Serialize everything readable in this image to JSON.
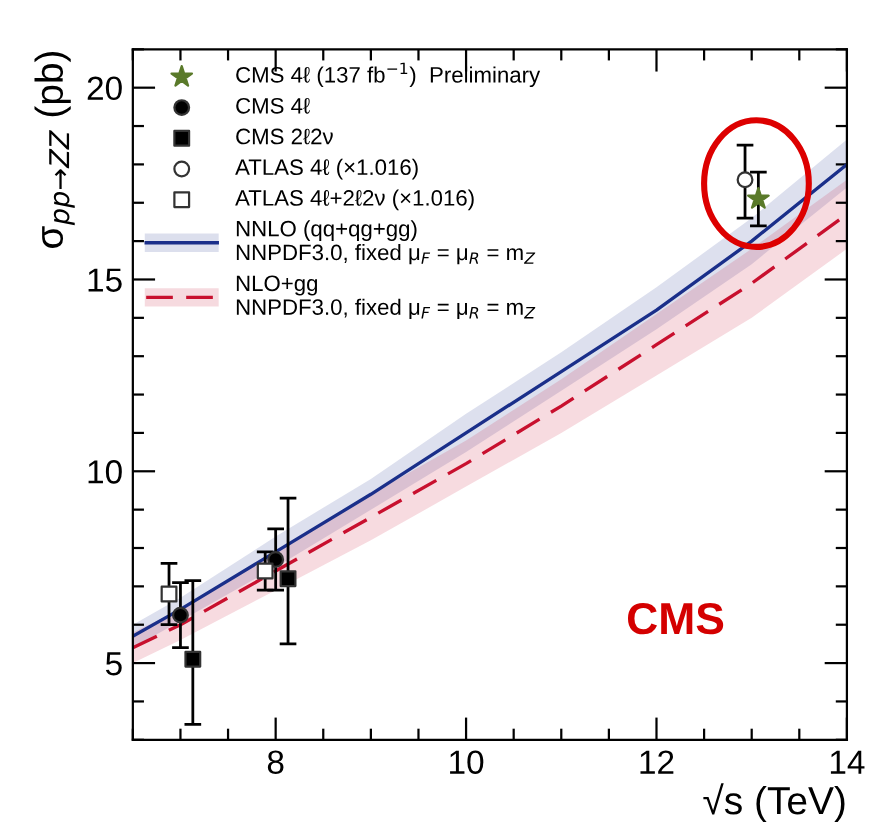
{
  "chart_data": {
    "type": "scatter",
    "xlabel": "√s (TeV)",
    "ylabel": "σ$_{pp→ZZ}$ (pb)",
    "xlim": [
      6.5,
      14
    ],
    "ylim": [
      3,
      21
    ],
    "xticks": [
      {
        "value": 6.5,
        "label": null
      },
      {
        "value": 7,
        "label": null
      },
      {
        "value": 7.5,
        "label": null
      },
      8,
      {
        "value": 8.5,
        "label": null
      },
      {
        "value": 9,
        "label": null
      },
      {
        "value": 9.5,
        "label": null
      },
      10,
      {
        "value": 10.5,
        "label": null
      },
      {
        "value": 11,
        "label": null
      },
      {
        "value": 11.5,
        "label": null
      },
      12,
      {
        "value": 12.5,
        "label": null
      },
      {
        "value": 13,
        "label": null
      },
      {
        "value": 13.5,
        "label": null
      },
      14
    ],
    "yticks": [
      {
        "value": 3,
        "label": null
      },
      {
        "value": 4,
        "label": null
      },
      5,
      {
        "value": 6,
        "label": null
      },
      {
        "value": 7,
        "label": null
      },
      {
        "value": 8,
        "label": null
      },
      {
        "value": 9,
        "label": null
      },
      10,
      {
        "value": 11,
        "label": null
      },
      {
        "value": 12,
        "label": null
      },
      {
        "value": 13,
        "label": null
      },
      {
        "value": 14,
        "label": null
      },
      15,
      {
        "value": 16,
        "label": null
      },
      {
        "value": 17,
        "label": null
      },
      {
        "value": 18,
        "label": null
      },
      {
        "value": 19,
        "label": null
      },
      20,
      {
        "value": 21,
        "label": null
      }
    ],
    "legend": "top left",
    "series": [
      {
        "name": "CMS 4ℓ (137 fb$^{−1}$)  Preliminary",
        "marker": "star",
        "color": "#5a7a2a",
        "x": [
          13.07
        ],
        "values": [
          17.1
        ],
        "errors": [
          [
            16.4,
            17.8
          ]
        ]
      },
      {
        "name": "CMS 4ℓ",
        "marker": "circle",
        "color": "#000000",
        "x": [
          7.0,
          8.0
        ],
        "values": [
          6.25,
          7.7
        ],
        "errors": [
          [
            5.4,
            7.1
          ],
          [
            6.9,
            8.5
          ]
        ]
      },
      {
        "name": "CMS 2ℓ2ν",
        "marker": "square",
        "color": "#000000",
        "x": [
          7.13,
          8.13
        ],
        "values": [
          5.1,
          7.2
        ],
        "errors": [
          [
            3.4,
            7.15
          ],
          [
            5.5,
            9.3
          ]
        ]
      },
      {
        "name": "ATLAS 4ℓ (×1.016)",
        "marker": "circle",
        "color": "#ffffff",
        "x": [
          12.93
        ],
        "values": [
          17.6
        ],
        "errors": [
          [
            16.6,
            18.5
          ]
        ]
      },
      {
        "name": "ATLAS 4ℓ+2ℓ2ν (×1.016)",
        "marker": "square",
        "color": "#ffffff",
        "x": [
          6.88,
          7.89
        ],
        "values": [
          6.8,
          7.4
        ],
        "errors": [
          [
            6.0,
            7.6
          ],
          [
            6.9,
            7.9
          ]
        ]
      },
      {
        "name": "NNLO (qq+qg+gg)\nNNPDF3.0, fixed μ$_{F}$ = μ$_{R}$ = m$_{Z}$",
        "type": "line",
        "line_style": "solid",
        "color": "#1a2f8a",
        "x": [
          6.5,
          7,
          8,
          9,
          10,
          11,
          12,
          13,
          14
        ],
        "values": [
          5.7,
          6.4,
          7.9,
          9.4,
          11.0,
          12.6,
          14.2,
          16.0,
          18.0
        ],
        "lower": [
          5.4,
          6.1,
          7.5,
          9.0,
          10.5,
          12.1,
          13.7,
          15.4,
          17.4
        ],
        "upper": [
          6.0,
          6.7,
          8.3,
          9.8,
          11.5,
          13.1,
          14.8,
          16.6,
          18.65
        ]
      },
      {
        "name": "NLO+gg\nNNPDF3.0, fixed μ$_{F}$ = μ$_{R}$ = m$_{Z}$",
        "type": "line",
        "line_style": "dashed",
        "color": "#c8102e",
        "x": [
          6.5,
          7,
          8,
          9,
          10,
          11,
          12,
          13,
          14
        ],
        "values": [
          5.4,
          6.0,
          7.4,
          8.8,
          10.2,
          11.7,
          13.3,
          14.9,
          16.7
        ],
        "lower": [
          5.0,
          5.6,
          6.9,
          8.2,
          9.6,
          11.0,
          12.5,
          14.0,
          15.8
        ],
        "upper": [
          5.8,
          6.4,
          7.9,
          9.4,
          10.8,
          12.4,
          14.1,
          15.8,
          17.6
        ]
      }
    ],
    "annotations": [
      "CMS"
    ]
  }
}
